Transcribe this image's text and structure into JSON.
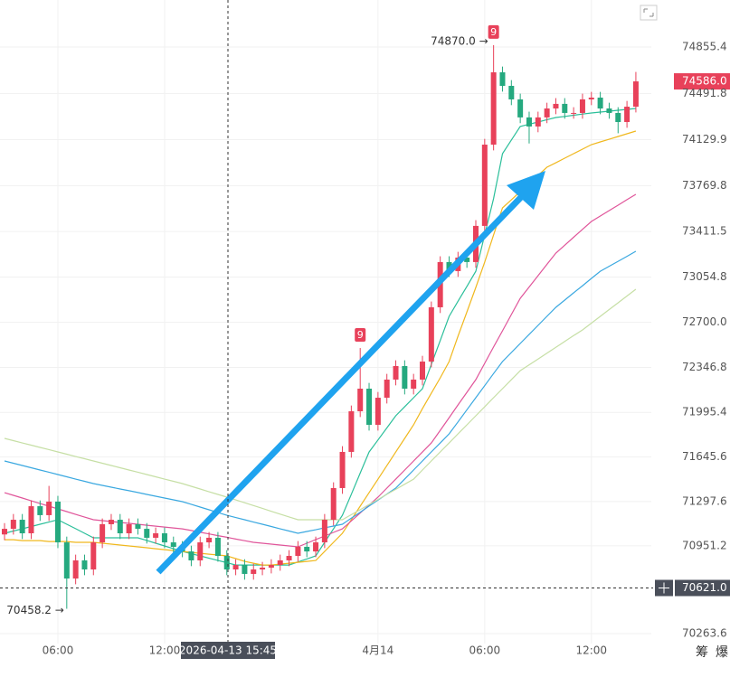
{
  "chart_data": {
    "type": "candlestick",
    "categories": [
      null,
      null,
      null,
      null,
      null,
      null,
      "06:00",
      null,
      null,
      null,
      null,
      null,
      null,
      null,
      null,
      null,
      null,
      null,
      "12:00",
      null,
      null,
      null,
      null,
      null,
      null,
      null,
      null,
      null,
      null,
      null,
      null,
      null,
      null,
      null,
      null,
      null,
      null,
      null,
      null,
      null,
      null,
      null,
      "4月14",
      null,
      null,
      null,
      null,
      null,
      null,
      null,
      null,
      null,
      null,
      null,
      "06:00",
      null,
      null,
      null,
      null,
      null,
      null,
      null,
      null,
      null,
      null,
      null,
      "12:00",
      null,
      null,
      null,
      null,
      null
    ],
    "open": [
      71040,
      71084,
      71155,
      71049,
      71261,
      71191,
      71297,
      70978,
      70695,
      70837,
      70766,
      70978,
      71120,
      71155,
      71049,
      71120,
      71084,
      71014,
      71049,
      70978,
      70943,
      70907,
      70837,
      70978,
      71014,
      70872,
      70766,
      70801,
      70731,
      70766,
      70780,
      70801,
      70837,
      70872,
      70943,
      70907,
      70978,
      71155,
      71403,
      71686,
      72004,
      72181,
      71898,
      72110,
      72252,
      72358,
      72181,
      72252,
      72393,
      72818,
      73172,
      73101,
      73207,
      73172,
      73455,
      74091,
      74657,
      74551,
      74445,
      74304,
      74233,
      74304,
      74374,
      74410,
      74339,
      74339,
      74445,
      74459,
      74374,
      74339,
      74268,
      74388
    ],
    "high": [
      71129,
      71200,
      71200,
      71306,
      71306,
      71420,
      71342,
      71023,
      70882,
      70882,
      71023,
      71165,
      71200,
      71200,
      71165,
      71165,
      71129,
      71094,
      71094,
      71023,
      70988,
      70952,
      71023,
      71059,
      71059,
      70917,
      70846,
      70846,
      70811,
      70825,
      70846,
      70882,
      70917,
      70988,
      70988,
      71023,
      71200,
      71448,
      71731,
      72049,
      72499,
      72226,
      72155,
      72297,
      72403,
      72403,
      72297,
      72438,
      72863,
      73217,
      73217,
      73252,
      73252,
      73500,
      74136,
      74870,
      74702,
      74596,
      74490,
      74349,
      74349,
      74419,
      74455,
      74455,
      74384,
      74490,
      74504,
      74504,
      74419,
      74384,
      74433,
      74660
    ],
    "low": [
      70995,
      71039,
      71004,
      71004,
      71146,
      71146,
      70933,
      70458.2,
      70650,
      70721,
      70721,
      70933,
      71075,
      71004,
      71004,
      71039,
      70969,
      70969,
      70933,
      70898,
      70862,
      70792,
      70792,
      70933,
      70827,
      70721,
      70721,
      70686,
      70686,
      70721,
      70735,
      70756,
      70792,
      70827,
      70862,
      70862,
      70933,
      71110,
      71358,
      71641,
      71959,
      71853,
      71853,
      72065,
      72207,
      72136,
      72136,
      72207,
      72348,
      72773,
      73056,
      73056,
      73127,
      73127,
      73410,
      74046,
      74506,
      74400,
      74259,
      74100,
      74188,
      74259,
      74329,
      74294,
      74294,
      74294,
      74400,
      74329,
      74294,
      74180,
      74223,
      74343
    ],
    "close": [
      71084,
      71155,
      71049,
      71261,
      71191,
      71297,
      70978,
      70695,
      70837,
      70766,
      70978,
      71120,
      71155,
      71049,
      71120,
      71084,
      71014,
      71049,
      70978,
      70943,
      70907,
      70837,
      70978,
      71014,
      70872,
      70766,
      70801,
      70731,
      70766,
      70780,
      70801,
      70837,
      70872,
      70943,
      70907,
      70978,
      71155,
      71403,
      71686,
      72004,
      72181,
      71898,
      72110,
      72252,
      72358,
      72181,
      72252,
      72393,
      72818,
      73172,
      73101,
      73207,
      73172,
      73455,
      74091,
      74657,
      74551,
      74445,
      74304,
      74233,
      74304,
      74374,
      74410,
      74339,
      74339,
      74445,
      74459,
      74374,
      74339,
      74268,
      74388,
      74586
    ],
    "up_color": "#e8415a",
    "down_color": "#25a97f",
    "series": [
      {
        "color": "#2bbf9a",
        "values": [
          71049,
          71067,
          71084,
          71102,
          71120,
          71137,
          71155,
          71120,
          71085,
          71049,
          71014,
          71014,
          71014,
          71014,
          71014,
          71014,
          70993,
          70971,
          70950,
          70928,
          70907,
          70889,
          70872,
          70854,
          70836,
          70819,
          70801,
          70801,
          70801,
          70801,
          70801,
          70801,
          70801,
          70825,
          70848,
          70872,
          70978,
          71084,
          71190,
          71355,
          71520,
          71685,
          71780,
          71874,
          71969,
          72040,
          72110,
          72181,
          72370,
          72558,
          72747,
          72865,
          72982,
          73100,
          73384,
          73667,
          74020,
          74127,
          74233,
          74251,
          74268,
          74286,
          74303,
          74312,
          74321,
          74330,
          74339,
          74346,
          74353,
          74360,
          74367,
          74374
        ]
      },
      {
        "color": "#f0b81e",
        "values": [
          70999,
          70999,
          70992,
          70992,
          70992,
          70985,
          70985,
          70985,
          70978,
          70978,
          70978,
          70971,
          70964,
          70957,
          70950,
          70943,
          70936,
          70928,
          70921,
          70914,
          70907,
          70900,
          70893,
          70886,
          70879,
          70872,
          70851,
          70829,
          70815,
          70801,
          70801,
          70808,
          70815,
          70822,
          70829,
          70836,
          70907,
          70978,
          71049,
          71155,
          71261,
          71367,
          71473,
          71579,
          71685,
          71792,
          71898,
          72025,
          72145,
          72266,
          72393,
          72591,
          72782,
          72973,
          73171,
          73383,
          73596,
          73659,
          73723,
          73787,
          73850,
          73914,
          73949,
          73985,
          74020,
          74056,
          74091,
          74112,
          74133,
          74155,
          74176,
          74197
        ]
      },
      {
        "color": "#e0559a",
        "values": [
          71367,
          71346,
          71325,
          71303,
          71282,
          71261,
          71240,
          71219,
          71197,
          71176,
          71155,
          71148,
          71141,
          71134,
          71127,
          71120,
          71112,
          71105,
          71098,
          71091,
          71084,
          71071,
          71057,
          71044,
          71031,
          71018,
          71004,
          70991,
          70978,
          70971,
          70964,
          70957,
          70950,
          70943,
          70971,
          71000,
          71028,
          71056,
          71084,
          71146,
          71208,
          71270,
          71332,
          71403,
          71473,
          71544,
          71615,
          71685,
          71756,
          71855,
          71954,
          72054,
          72153,
          72252,
          72379,
          72507,
          72634,
          72761,
          72888,
          72977,
          73065,
          73154,
          73242,
          73304,
          73366,
          73428,
          73490,
          73532,
          73575,
          73617,
          73660,
          73702
        ]
      },
      {
        "color": "#3aa8e0",
        "values": [
          71615,
          71597,
          71580,
          71562,
          71544,
          71527,
          71509,
          71491,
          71473,
          71456,
          71438,
          71424,
          71410,
          71396,
          71382,
          71368,
          71353,
          71339,
          71325,
          71311,
          71297,
          71276,
          71254,
          71233,
          71211,
          71190,
          71172,
          71155,
          71137,
          71120,
          71102,
          71084,
          71067,
          71049,
          71063,
          71077,
          71092,
          71106,
          71120,
          71167,
          71214,
          71262,
          71309,
          71356,
          71403,
          71474,
          71544,
          71615,
          71686,
          71756,
          71827,
          71921,
          72016,
          72110,
          72204,
          72299,
          72393,
          72464,
          72535,
          72606,
          72676,
          72747,
          72818,
          72874,
          72931,
          72987,
          73044,
          73100,
          73139,
          73178,
          73217,
          73256
        ]
      },
      {
        "color": "#c6dfa5",
        "values": [
          71792,
          71774,
          71756,
          71739,
          71721,
          71704,
          71686,
          71668,
          71650,
          71633,
          71615,
          71597,
          71580,
          71562,
          71544,
          71527,
          71509,
          71491,
          71473,
          71456,
          71438,
          71417,
          71396,
          71374,
          71353,
          71332,
          71310,
          71288,
          71266,
          71244,
          71221,
          71199,
          71177,
          71155,
          71155,
          71155,
          71155,
          71155,
          71155,
          71195,
          71234,
          71274,
          71314,
          71354,
          71393,
          71433,
          71473,
          71544,
          71615,
          71686,
          71756,
          71827,
          71898,
          71969,
          72039,
          72110,
          72181,
          72251,
          72322,
          72368,
          72413,
          72459,
          72504,
          72550,
          72596,
          72641,
          72694,
          72747,
          72800,
          72853,
          72906,
          72959
        ]
      }
    ],
    "ylim": [
      70186,
      75223
    ],
    "yticks": [
      74855.4,
      74491.8,
      74129.9,
      73769.8,
      73411.5,
      73054.8,
      {
        "value": 72700,
        "label": "72700.0"
      },
      72346.8,
      71995.4,
      71645.6,
      71297.6,
      70951.2,
      70263.6
    ],
    "grid": true,
    "last_price": {
      "value": 74586,
      "label": "74586.0"
    },
    "crosshair": {
      "price": {
        "value": 70621,
        "label": "70621.0"
      },
      "time": "2026-04-13 15:45"
    },
    "high_note": "74870.0 →",
    "low_note": "70458.2 →",
    "signals": [
      "9",
      "9"
    ],
    "corner_labels": [
      "筹",
      "爆"
    ]
  }
}
